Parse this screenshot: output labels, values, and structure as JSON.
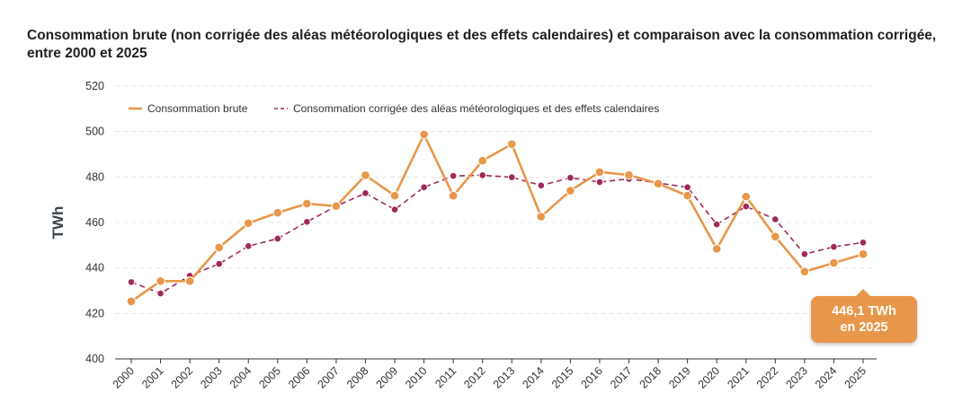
{
  "chart_data": {
    "type": "line",
    "title": "Consommation brute (non corrigée des aléas météorologiques et des effets calendaires) et comparaison avec la consommation corrigée, entre 2000 et 2025",
    "ylabel": "TWh",
    "xlabel": "",
    "ylim": [
      400,
      520
    ],
    "yticks": [
      400,
      420,
      440,
      460,
      480,
      500,
      520
    ],
    "grid": true,
    "legend": "top-left",
    "categories": [
      "2000",
      "2001",
      "2002",
      "2003",
      "2004",
      "2005",
      "2006",
      "2007",
      "2008",
      "2009",
      "2010",
      "2011",
      "2012",
      "2013",
      "2014",
      "2015",
      "2016",
      "2017",
      "2018",
      "2019",
      "2020",
      "2021",
      "2022",
      "2023",
      "2024",
      "2025"
    ],
    "series": [
      {
        "name": "Consommation brute",
        "color": "#E8974A",
        "style": "solid",
        "values": [
          425.3,
          434.2,
          434.2,
          449.0,
          459.7,
          464.3,
          468.3,
          467.2,
          480.8,
          471.8,
          498.7,
          471.8,
          487.2,
          494.5,
          462.6,
          474.0,
          482.2,
          480.9,
          477.1,
          471.8,
          448.4,
          471.4,
          453.8,
          438.4,
          442.2,
          446.1
        ]
      },
      {
        "name": "Consommation corrigée des aléas météorologiques et des effets calendaires",
        "color": "#9E2A5C",
        "style": "dashed",
        "values": [
          433.8,
          428.8,
          436.6,
          441.8,
          449.6,
          452.9,
          460.3,
          467.2,
          472.9,
          465.7,
          475.5,
          480.5,
          480.8,
          479.9,
          476.3,
          479.7,
          477.8,
          479.2,
          477.4,
          475.5,
          459.2,
          467.1,
          461.4,
          446.1,
          449.3,
          451.2
        ]
      }
    ],
    "annotation": {
      "line1": "446,1 TWh",
      "line2": "en 2025"
    }
  }
}
